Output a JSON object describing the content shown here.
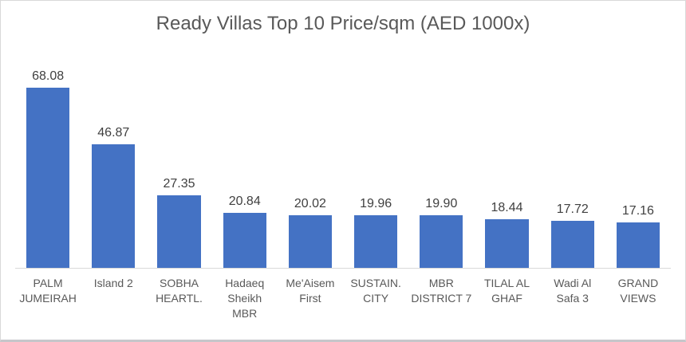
{
  "chart_data": {
    "type": "bar",
    "title": "Ready Villas Top 10 Price/sqm (AED 1000x)",
    "categories": [
      "PALM JUMEIRAH",
      "Island 2",
      "SOBHA HEARTL.",
      "Hadaeq Sheikh MBR",
      "Me'Aisem First",
      "SUSTAIN. CITY",
      "MBR DISTRICT 7",
      "TILAL AL GHAF",
      "Wadi Al Safa 3",
      "GRAND VIEWS"
    ],
    "category_lines": [
      [
        "PALM",
        "JUMEIRAH"
      ],
      [
        "Island 2"
      ],
      [
        "SOBHA",
        "HEARTL."
      ],
      [
        "Hadaeq",
        "Sheikh",
        "MBR"
      ],
      [
        "Me'Aisem",
        "First"
      ],
      [
        "SUSTAIN.",
        "CITY"
      ],
      [
        "MBR",
        "DISTRICT 7"
      ],
      [
        "TILAL AL",
        "GHAF"
      ],
      [
        "Wadi Al",
        "Safa 3"
      ],
      [
        "GRAND",
        "VIEWS"
      ]
    ],
    "values": [
      68.08,
      46.87,
      27.35,
      20.84,
      20.02,
      19.96,
      19.9,
      18.44,
      17.72,
      17.16
    ],
    "value_labels": [
      "68.08",
      "46.87",
      "27.35",
      "20.84",
      "20.02",
      "19.96",
      "19.90",
      "18.44",
      "17.72",
      "17.16"
    ],
    "xlabel": "",
    "ylabel": "",
    "ylim": [
      0,
      70
    ],
    "grid": false,
    "legend": "none",
    "data_labels_position": "above bars",
    "bar_color": "#4472c4",
    "baseline_color": "#d9d9d9",
    "title_color": "#595959",
    "value_label_color": "#404040",
    "category_label_color": "#595959"
  }
}
